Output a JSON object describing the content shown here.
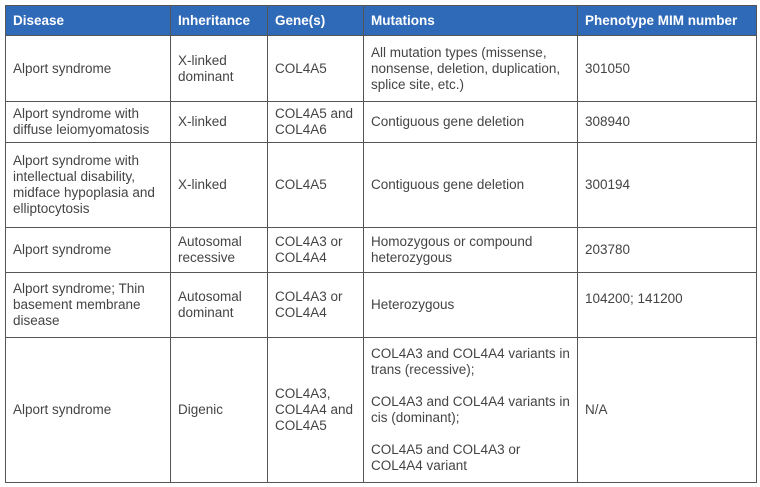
{
  "table": {
    "headers": [
      "Disease",
      "Inheritance",
      "Gene(s)",
      "Mutations",
      "Phenotype MIM number"
    ],
    "header_color": "#2f6ab9",
    "rows": [
      {
        "disease": "Alport syndrome",
        "inheritance": "X-linked dominant",
        "genes": "COL4A5",
        "mutations": [
          "All mutation types (missense, nonsense, deletion, duplication, splice site, etc.)"
        ],
        "mim": "301050"
      },
      {
        "disease": "Alport syndrome with diffuse leiomyomatosis",
        "inheritance": "X-linked",
        "genes": "COL4A5 and COL4A6",
        "mutations": [
          "Contiguous gene deletion"
        ],
        "mim": "308940"
      },
      {
        "disease": "Alport syndrome with intellectual disability, midface hypoplasia and elliptocytosis",
        "inheritance": "X-linked",
        "genes": "COL4A5",
        "mutations": [
          "Contiguous gene deletion"
        ],
        "mim": "300194"
      },
      {
        "disease": "Alport syndrome",
        "inheritance": "Autosomal recessive",
        "genes": "COL4A3 or COL4A4",
        "mutations": [
          "Homozygous or compound heterozygous"
        ],
        "mim": "203780"
      },
      {
        "disease": "Alport syndrome; Thin basement membrane disease",
        "inheritance": "Autosomal dominant",
        "genes": "COL4A3 or COL4A4",
        "mutations": [
          "Heterozygous"
        ],
        "mim": "104200; 141200"
      },
      {
        "disease": "Alport syndrome",
        "inheritance": "Digenic",
        "genes": "COL4A3, COL4A4 and COL4A5",
        "mutations": [
          "COL4A3 and COL4A4 variants in trans (recessive);",
          "COL4A3 and COL4A4 variants in cis (dominant);",
          "COL4A5 and COL4A3 or COL4A4 variant"
        ],
        "mim": "N/A"
      }
    ]
  }
}
